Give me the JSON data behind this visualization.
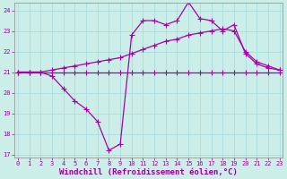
{
  "xlabel": "Windchill (Refroidissement éolien,°C)",
  "ylabel": "",
  "bg_color": "#cceee8",
  "grid_color": "#aadddd",
  "line_color": "#aa00aa",
  "x_min": 0,
  "x_max": 23,
  "y_min": 17,
  "y_max": 24,
  "x_ticks": [
    0,
    1,
    2,
    3,
    4,
    5,
    6,
    7,
    8,
    9,
    10,
    11,
    12,
    13,
    14,
    15,
    16,
    17,
    18,
    19,
    20,
    21,
    22,
    23
  ],
  "y_ticks": [
    17,
    18,
    19,
    20,
    21,
    22,
    23,
    24
  ],
  "line1_x": [
    0,
    1,
    2,
    3,
    4,
    5,
    6,
    7,
    8,
    9,
    10,
    11,
    12,
    13,
    14,
    15,
    16,
    17,
    18,
    19,
    20,
    21,
    22,
    23
  ],
  "line1_y": [
    21.0,
    21.0,
    21.0,
    21.0,
    21.0,
    21.0,
    21.0,
    21.0,
    21.0,
    21.0,
    21.0,
    21.0,
    21.0,
    21.0,
    21.0,
    21.0,
    21.0,
    21.0,
    21.0,
    21.0,
    21.0,
    21.0,
    21.0,
    21.0
  ],
  "line2_x": [
    0,
    1,
    2,
    3,
    4,
    5,
    6,
    7,
    8,
    9,
    10,
    11,
    12,
    13,
    14,
    15,
    16,
    17,
    18,
    19,
    20,
    21,
    22,
    23
  ],
  "line2_y": [
    21.0,
    21.0,
    21.0,
    21.1,
    21.2,
    21.3,
    21.4,
    21.5,
    21.6,
    21.7,
    21.9,
    22.1,
    22.3,
    22.5,
    22.6,
    22.8,
    22.9,
    23.0,
    23.1,
    23.0,
    22.0,
    21.5,
    21.3,
    21.1
  ],
  "line3_x": [
    0,
    1,
    2,
    3,
    4,
    5,
    6,
    7,
    8,
    9,
    10,
    11,
    12,
    13,
    14,
    15,
    16,
    17,
    18,
    19,
    20,
    21,
    22,
    23
  ],
  "line3_y": [
    21.0,
    21.0,
    21.0,
    20.8,
    20.2,
    19.6,
    19.2,
    18.6,
    17.2,
    17.5,
    22.8,
    23.5,
    23.5,
    23.3,
    23.5,
    24.4,
    23.6,
    23.5,
    23.0,
    23.3,
    21.9,
    21.4,
    21.2,
    21.1
  ],
  "marker": "+",
  "marker_size": 4,
  "linewidth": 0.9,
  "tick_fontsize": 5.0,
  "xlabel_fontsize": 6.5,
  "tick_color": "#990099",
  "axis_color": "#999999"
}
